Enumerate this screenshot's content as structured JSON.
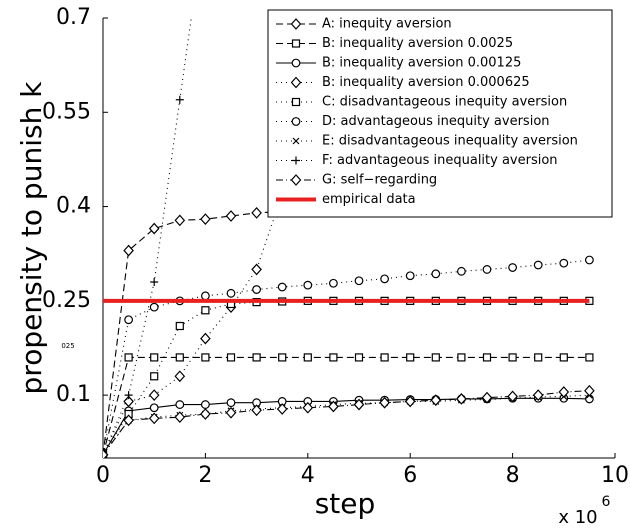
{
  "chart_data": {
    "type": "line",
    "xlabel": "step",
    "ylabel": "propensity to punish k",
    "x_multiplier": "x 10",
    "x_multiplier_exponent": "6",
    "annotation": "025",
    "x": [
      0,
      0.5,
      1,
      1.5,
      2,
      2.5,
      3,
      3.5,
      4,
      4.5,
      5,
      5.5,
      6,
      6.5,
      7,
      7.5,
      8,
      8.5,
      9,
      9.5
    ],
    "xlim": [
      0,
      10
    ],
    "xticks": [
      0,
      2,
      4,
      6,
      8,
      10
    ],
    "ylim": [
      0,
      0.7
    ],
    "yticks": [
      0.1,
      0.25,
      0.4,
      0.55,
      0.7
    ],
    "grid": false,
    "legend_position": "top-right",
    "series": [
      {
        "name": "A: inequity aversion",
        "color": "#000000",
        "marker": "diamond",
        "line_style": "dashed",
        "values": [
          0.005,
          0.33,
          0.365,
          0.378,
          0.38,
          0.385,
          0.39,
          0.392,
          0.395,
          0.397,
          0.4,
          0.4,
          0.402,
          0.403,
          0.404,
          0.405,
          0.405,
          0.406,
          0.406,
          0.407
        ]
      },
      {
        "name": "B: inequality aversion 0.0025",
        "color": "#000000",
        "marker": "square",
        "line_style": "dashed",
        "values": [
          0.005,
          0.16,
          0.16,
          0.16,
          0.16,
          0.16,
          0.16,
          0.16,
          0.16,
          0.16,
          0.16,
          0.16,
          0.16,
          0.16,
          0.16,
          0.16,
          0.16,
          0.16,
          0.16,
          0.16
        ]
      },
      {
        "name": "B: inequality aversion 0.00125",
        "color": "#000000",
        "marker": "circle",
        "line_style": "solid",
        "values": [
          0.005,
          0.075,
          0.08,
          0.085,
          0.085,
          0.088,
          0.088,
          0.09,
          0.09,
          0.09,
          0.092,
          0.092,
          0.093,
          0.093,
          0.094,
          0.094,
          0.095,
          0.095,
          0.095,
          0.094
        ]
      },
      {
        "name": "B: inequality aversion 0.000625",
        "color": "#000000",
        "marker": "diamond",
        "line_style": "dotted",
        "values": [
          0.005,
          0.09,
          0.1,
          0.13,
          0.19,
          0.24,
          0.3,
          0.42,
          0.56,
          0.7,
          null,
          null,
          null,
          null,
          null,
          null,
          null,
          null,
          null,
          null
        ]
      },
      {
        "name": "C: disadvantageous inequity aversion",
        "color": "#000000",
        "marker": "square",
        "line_style": "dotted",
        "values": [
          0.005,
          0.07,
          0.13,
          0.21,
          0.235,
          0.245,
          0.248,
          0.249,
          0.25,
          0.25,
          0.25,
          0.25,
          0.25,
          0.25,
          0.25,
          0.25,
          0.25,
          0.25,
          0.25,
          0.25
        ]
      },
      {
        "name": "D: advantageous inequity aversion",
        "color": "#000000",
        "marker": "circle",
        "line_style": "dotted",
        "values": [
          0.005,
          0.22,
          0.24,
          0.25,
          0.258,
          0.262,
          0.268,
          0.272,
          0.275,
          0.278,
          0.282,
          0.285,
          0.29,
          0.293,
          0.297,
          0.3,
          0.303,
          0.307,
          0.31,
          0.315
        ]
      },
      {
        "name": "E: disadvantageous inequality aversion",
        "color": "#000000",
        "marker": "x",
        "line_style": "dotted",
        "values": [
          0.005,
          0.06,
          0.065,
          0.068,
          0.07,
          0.075,
          0.078,
          0.08,
          0.082,
          0.085,
          0.087,
          0.088,
          0.09,
          0.09,
          0.092,
          0.093,
          0.095,
          0.097,
          0.098,
          0.1
        ]
      },
      {
        "name": "F: advantageous inequality aversion",
        "color": "#000000",
        "marker": "plus",
        "line_style": "dotted",
        "values": [
          0.005,
          0.1,
          0.28,
          0.57,
          0.86,
          null,
          null,
          null,
          null,
          null,
          null,
          null,
          null,
          null,
          null,
          null,
          null,
          null,
          null,
          null
        ]
      },
      {
        "name": "G: self−regarding",
        "color": "#000000",
        "marker": "diamond",
        "line_style": "dashdot",
        "values": [
          0.005,
          0.06,
          0.063,
          0.065,
          0.07,
          0.072,
          0.076,
          0.078,
          0.08,
          0.082,
          0.085,
          0.088,
          0.09,
          0.092,
          0.094,
          0.096,
          0.098,
          0.1,
          0.105,
          0.107
        ]
      },
      {
        "name": "empirical data",
        "color": "#e8201f",
        "marker": "none",
        "line_style": "thick",
        "x": [
          0,
          9.5
        ],
        "values": [
          0.25,
          0.25
        ]
      }
    ]
  }
}
